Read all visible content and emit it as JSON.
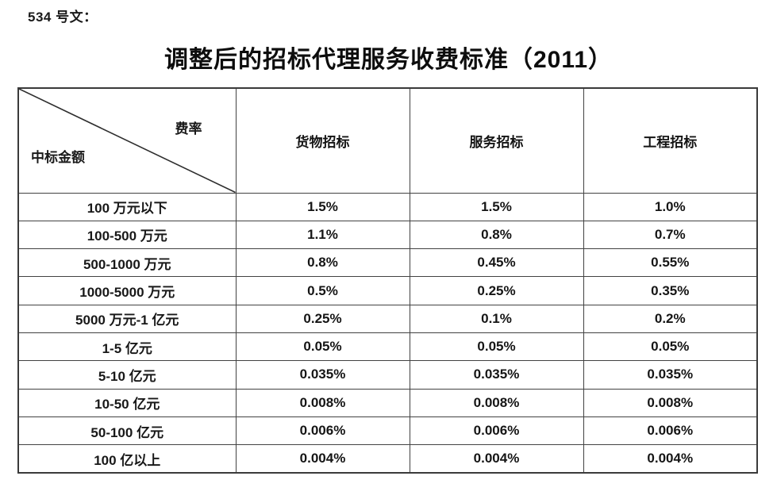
{
  "doc": {
    "ref_label": "534 号文：",
    "title": "调整后的招标代理服务收费标准（2011）"
  },
  "table": {
    "corner": {
      "top_right": "费率",
      "bottom_left": "中标金额"
    },
    "columns": [
      "货物招标",
      "服务招标",
      "工程招标"
    ],
    "rows": [
      {
        "range": "100 万元以下",
        "goods": "1.5%",
        "services": "1.5%",
        "engineering": "1.0%"
      },
      {
        "range": "100-500 万元",
        "goods": "1.1%",
        "services": "0.8%",
        "engineering": "0.7%"
      },
      {
        "range": "500-1000 万元",
        "goods": "0.8%",
        "services": "0.45%",
        "engineering": "0.55%"
      },
      {
        "range": "1000-5000 万元",
        "goods": "0.5%",
        "services": "0.25%",
        "engineering": "0.35%"
      },
      {
        "range": "5000 万元-1 亿元",
        "goods": "0.25%",
        "services": "0.1%",
        "engineering": "0.2%"
      },
      {
        "range": "1-5 亿元",
        "goods": "0.05%",
        "services": "0.05%",
        "engineering": "0.05%"
      },
      {
        "range": "5-10 亿元",
        "goods": "0.035%",
        "services": "0.035%",
        "engineering": "0.035%"
      },
      {
        "range": "10-50 亿元",
        "goods": "0.008%",
        "services": "0.008%",
        "engineering": "0.008%"
      },
      {
        "range": "50-100 亿元",
        "goods": "0.006%",
        "services": "0.006%",
        "engineering": "0.006%"
      },
      {
        "range": "100 亿以上",
        "goods": "0.004%",
        "services": "0.004%",
        "engineering": "0.004%"
      }
    ]
  },
  "colors": {
    "text": "#1a1a1a",
    "border": "#424242",
    "background": "#ffffff"
  }
}
